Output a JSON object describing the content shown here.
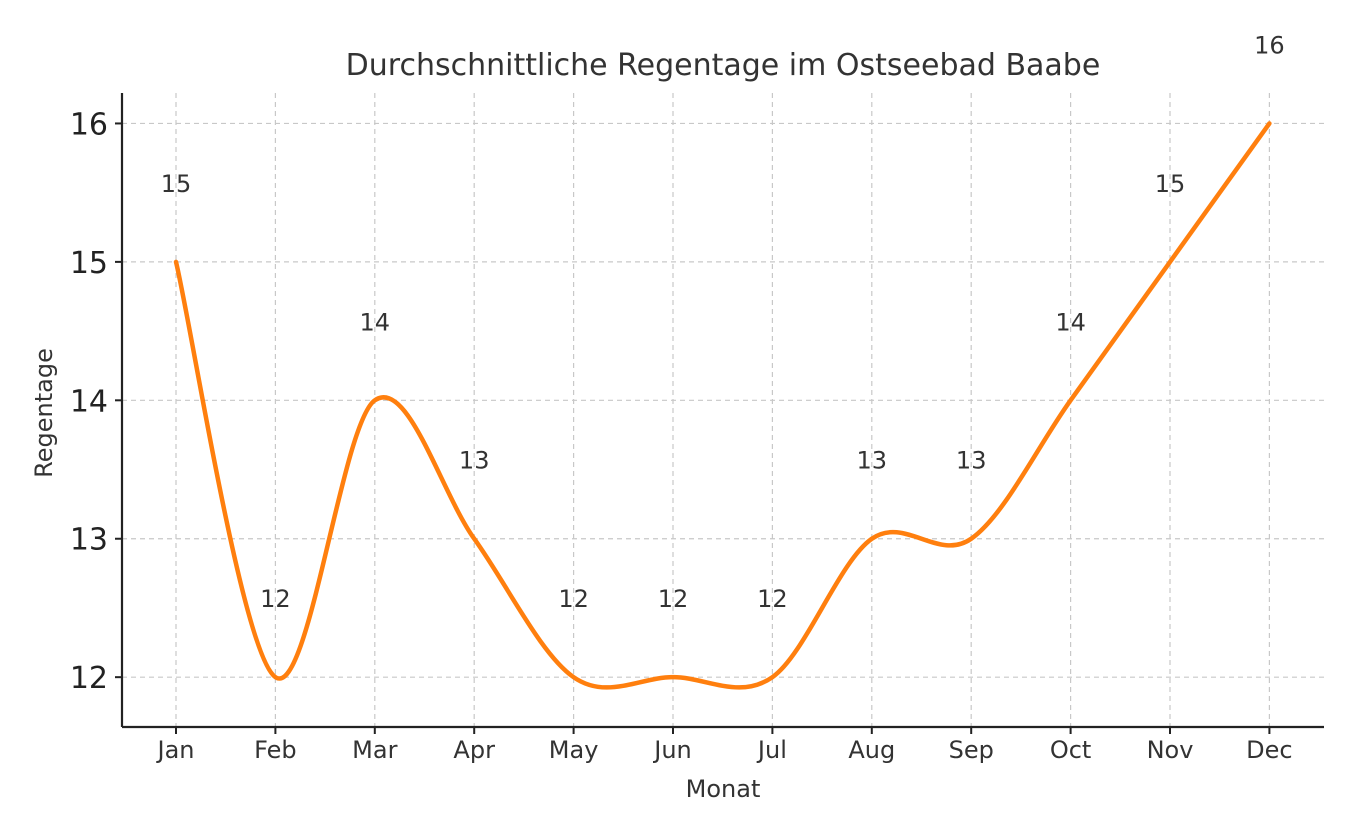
{
  "chart_data": {
    "type": "line",
    "title": "Durchschnittliche Regentage im Ostseebad Baabe",
    "xlabel": "Monat",
    "ylabel": "Regentage",
    "categories": [
      "Jan",
      "Feb",
      "Mar",
      "Apr",
      "May",
      "Jun",
      "Jul",
      "Aug",
      "Sep",
      "Oct",
      "Nov",
      "Dec"
    ],
    "series": [
      {
        "values": [
          15,
          12,
          14,
          13,
          12,
          12,
          12,
          13,
          13,
          14,
          15,
          16
        ],
        "color": "#ff7f0e"
      }
    ],
    "yticks": [
      12,
      13,
      14,
      15,
      16
    ],
    "ylim": [
      11.64,
      16.22
    ],
    "grid": true,
    "smooth": true
  }
}
